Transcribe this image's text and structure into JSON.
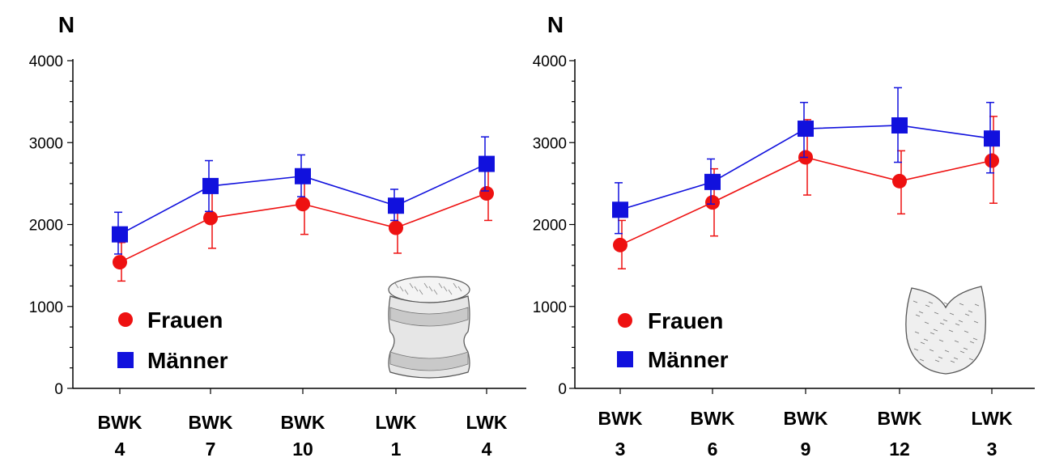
{
  "chart_data": [
    {
      "type": "line",
      "ylabel": "N",
      "ylim": [
        0,
        4000
      ],
      "yticks": [
        "0",
        "1000",
        "2000",
        "3000",
        "4000"
      ],
      "categories": [
        [
          "BWK",
          "4"
        ],
        [
          "BWK",
          "7"
        ],
        [
          "BWK",
          "10"
        ],
        [
          "LWK",
          "1"
        ],
        [
          "LWK",
          "4"
        ]
      ],
      "series": [
        {
          "name": "Frauen",
          "color": "#ee1111",
          "marker": "circle",
          "values": [
            1540,
            2080,
            2250,
            1960,
            2380
          ],
          "err_low": [
            1310,
            1710,
            1880,
            1650,
            2050
          ],
          "err_high": [
            1780,
            2440,
            2620,
            2270,
            2720
          ]
        },
        {
          "name": "Männer",
          "color": "#1111dd",
          "marker": "square",
          "values": [
            1880,
            2470,
            2590,
            2230,
            2740
          ],
          "err_low": [
            1640,
            2160,
            2340,
            2050,
            2410
          ],
          "err_high": [
            2150,
            2780,
            2850,
            2430,
            3070
          ]
        }
      ],
      "legend_position": "bottom-left",
      "grid": false,
      "illustration": "vertebra-side-view"
    },
    {
      "type": "line",
      "ylabel": "N",
      "ylim": [
        0,
        4000
      ],
      "yticks": [
        "0",
        "1000",
        "2000",
        "3000",
        "4000"
      ],
      "categories": [
        [
          "BWK",
          "3"
        ],
        [
          "BWK",
          "6"
        ],
        [
          "BWK",
          "9"
        ],
        [
          "BWK",
          "12"
        ],
        [
          "LWK",
          "3"
        ]
      ],
      "series": [
        {
          "name": "Frauen",
          "color": "#ee1111",
          "marker": "circle",
          "values": [
            1750,
            2270,
            2820,
            2530,
            2780
          ],
          "err_low": [
            1460,
            1860,
            2360,
            2130,
            2260
          ],
          "err_high": [
            2050,
            2680,
            3280,
            2900,
            3320
          ]
        },
        {
          "name": "Männer",
          "color": "#1111dd",
          "marker": "square",
          "values": [
            2180,
            2520,
            3170,
            3210,
            3050
          ],
          "err_low": [
            1890,
            2250,
            2820,
            2760,
            2630
          ],
          "err_high": [
            2510,
            2800,
            3490,
            3670,
            3490
          ]
        }
      ],
      "legend_position": "bottom-left",
      "grid": false,
      "illustration": "vertebra-top-view"
    }
  ]
}
